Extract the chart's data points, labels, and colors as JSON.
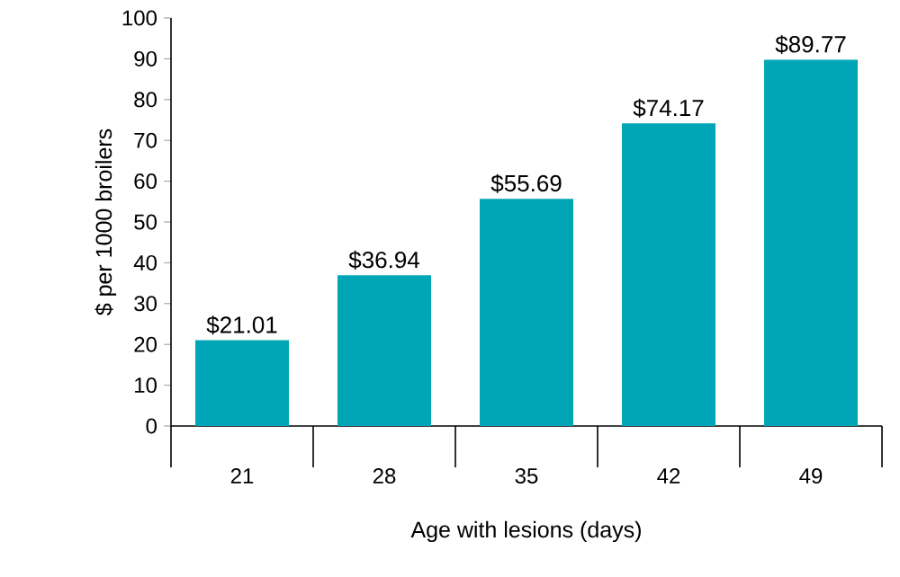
{
  "chart_data": {
    "type": "bar",
    "xlabel": "Age with lesions (days)",
    "ylabel": "$ per 1000 broilers",
    "categories": [
      "21",
      "28",
      "35",
      "42",
      "49"
    ],
    "values": [
      21.01,
      36.94,
      55.69,
      74.17,
      89.77
    ],
    "value_labels": [
      "$21.01",
      "$36.94",
      "$55.69",
      "$74.17",
      "$89.77"
    ],
    "color": "#00a6b5",
    "ylim": [
      0,
      100
    ],
    "yticks": [
      0,
      10,
      20,
      30,
      40,
      50,
      60,
      70,
      80,
      90,
      100
    ]
  }
}
